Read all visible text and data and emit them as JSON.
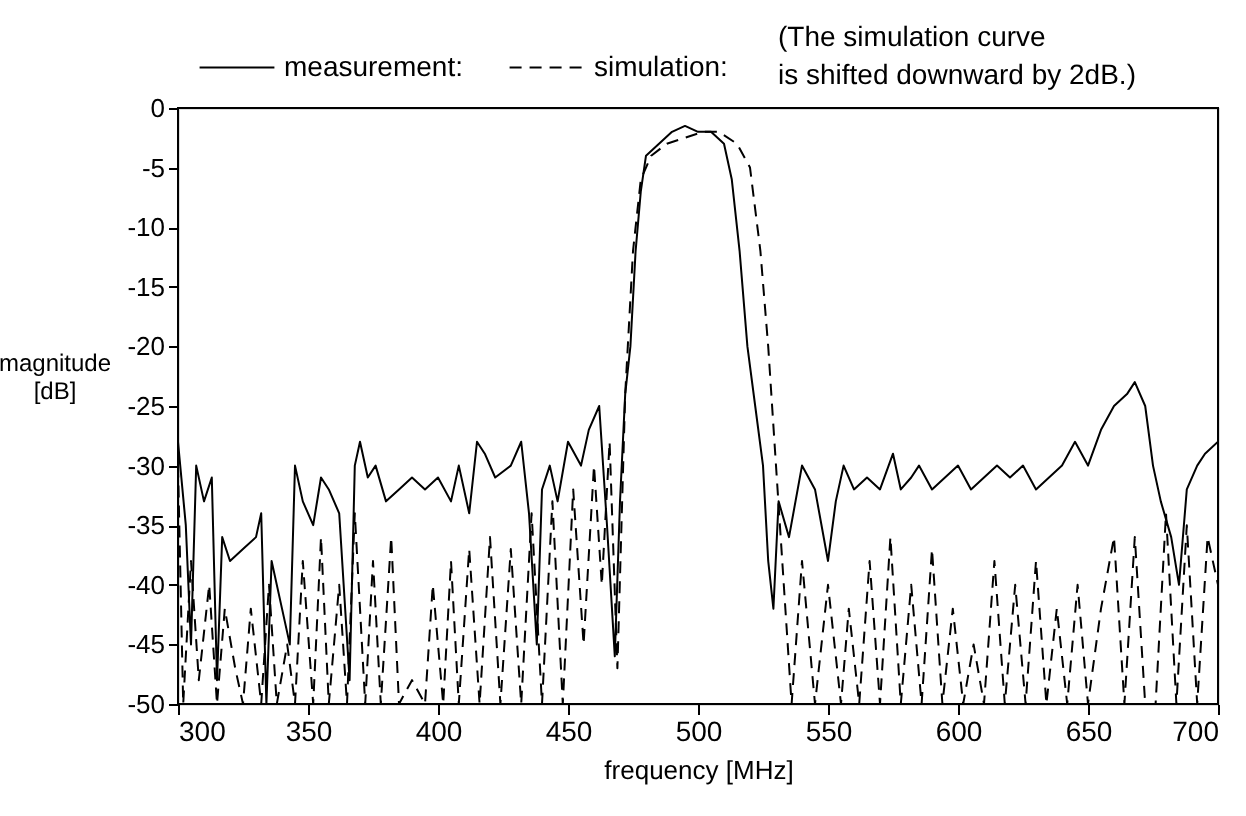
{
  "chart_data": {
    "type": "line",
    "xlabel": "frequency [MHz]",
    "ylabel": "magnitude [dB]",
    "annotations": [
      "(The simulation curve",
      "is shifted downward by 2dB.)"
    ],
    "xlim": [
      300,
      700
    ],
    "xticks": [
      300,
      350,
      400,
      450,
      500,
      550,
      600,
      650,
      700
    ],
    "ylim": [
      -50,
      0
    ],
    "yticks": [
      0,
      -5,
      -10,
      -15,
      -20,
      -25,
      -30,
      -35,
      -40,
      -45,
      -50
    ],
    "grid": false,
    "legend": "top",
    "marker": "none",
    "series": [
      {
        "name": "measurement:",
        "color": "#000000",
        "line_style": "solid",
        "x": [
          300,
          303,
          305,
          307,
          310,
          313,
          315,
          317,
          320,
          325,
          330,
          332,
          334,
          336,
          340,
          343,
          345,
          348,
          352,
          355,
          358,
          362,
          366,
          368,
          370,
          373,
          376,
          380,
          385,
          390,
          395,
          400,
          405,
          408,
          412,
          415,
          418,
          422,
          428,
          432,
          435,
          438,
          440,
          443,
          446,
          450,
          455,
          458,
          462,
          465,
          468,
          470,
          472,
          474,
          476,
          478,
          480,
          485,
          490,
          495,
          500,
          505,
          510,
          513,
          516,
          519,
          522,
          525,
          527,
          529,
          531,
          535,
          540,
          545,
          550,
          553,
          556,
          560,
          565,
          570,
          575,
          578,
          582,
          585,
          590,
          595,
          600,
          605,
          610,
          615,
          620,
          625,
          630,
          635,
          640,
          645,
          650,
          655,
          660,
          665,
          668,
          672,
          675,
          678,
          682,
          685,
          688,
          692,
          695,
          700
        ],
        "values": [
          -28,
          -35,
          -45,
          -30,
          -33,
          -31,
          -48,
          -36,
          -38,
          -37,
          -36,
          -34,
          -50,
          -38,
          -42,
          -45,
          -30,
          -33,
          -35,
          -31,
          -32,
          -34,
          -48,
          -30,
          -28,
          -31,
          -30,
          -33,
          -32,
          -31,
          -32,
          -31,
          -33,
          -30,
          -34,
          -28,
          -29,
          -31,
          -30,
          -28,
          -34,
          -45,
          -32,
          -30,
          -33,
          -28,
          -30,
          -27,
          -25,
          -35,
          -46,
          -33,
          -24,
          -20,
          -12,
          -7,
          -4,
          -3,
          -2,
          -1.5,
          -2,
          -2,
          -3,
          -6,
          -12,
          -20,
          -25,
          -30,
          -38,
          -42,
          -33,
          -36,
          -30,
          -32,
          -38,
          -33,
          -30,
          -32,
          -31,
          -32,
          -29,
          -32,
          -31,
          -30,
          -32,
          -31,
          -30,
          -32,
          -31,
          -30,
          -31,
          -30,
          -32,
          -31,
          -30,
          -28,
          -30,
          -27,
          -25,
          -24,
          -23,
          -25,
          -30,
          -33,
          -36,
          -40,
          -32,
          -30,
          -29,
          -28
        ]
      },
      {
        "name": "simulation:",
        "color": "#000000",
        "line_style": "dashed",
        "x": [
          300,
          302,
          305,
          308,
          312,
          315,
          318,
          322,
          325,
          328,
          332,
          335,
          338,
          342,
          345,
          348,
          352,
          355,
          358,
          362,
          365,
          368,
          372,
          375,
          378,
          382,
          385,
          390,
          395,
          398,
          402,
          405,
          408,
          412,
          416,
          420,
          424,
          428,
          432,
          436,
          440,
          444,
          448,
          452,
          456,
          460,
          463,
          466,
          469,
          472,
          475,
          478,
          482,
          488,
          495,
          502,
          508,
          515,
          520,
          524,
          527,
          530,
          533,
          536,
          540,
          545,
          550,
          555,
          558,
          562,
          566,
          570,
          574,
          578,
          582,
          586,
          590,
          594,
          598,
          602,
          606,
          610,
          614,
          618,
          622,
          626,
          630,
          634,
          638,
          642,
          646,
          650,
          655,
          660,
          664,
          668,
          672,
          676,
          680,
          684,
          688,
          692,
          696,
          700
        ],
        "values": [
          -30,
          -50,
          -38,
          -48,
          -40,
          -50,
          -42,
          -47,
          -50,
          -42,
          -50,
          -40,
          -50,
          -45,
          -50,
          -38,
          -50,
          -36,
          -50,
          -40,
          -50,
          -34,
          -50,
          -38,
          -50,
          -36,
          -50,
          -48,
          -50,
          -40,
          -50,
          -38,
          -50,
          -37,
          -50,
          -36,
          -50,
          -37,
          -50,
          -34,
          -50,
          -33,
          -50,
          -32,
          -45,
          -30,
          -40,
          -28,
          -47,
          -24,
          -12,
          -6,
          -4,
          -3,
          -2.5,
          -2,
          -2,
          -3,
          -5,
          -12,
          -20,
          -30,
          -40,
          -50,
          -38,
          -50,
          -40,
          -50,
          -42,
          -50,
          -38,
          -50,
          -36,
          -50,
          -40,
          -50,
          -37,
          -50,
          -42,
          -50,
          -45,
          -50,
          -38,
          -50,
          -40,
          -50,
          -38,
          -50,
          -42,
          -50,
          -40,
          -50,
          -42,
          -36,
          -50,
          -36,
          -50,
          -50,
          -34,
          -50,
          -35,
          -50,
          -36,
          -40
        ]
      }
    ]
  }
}
